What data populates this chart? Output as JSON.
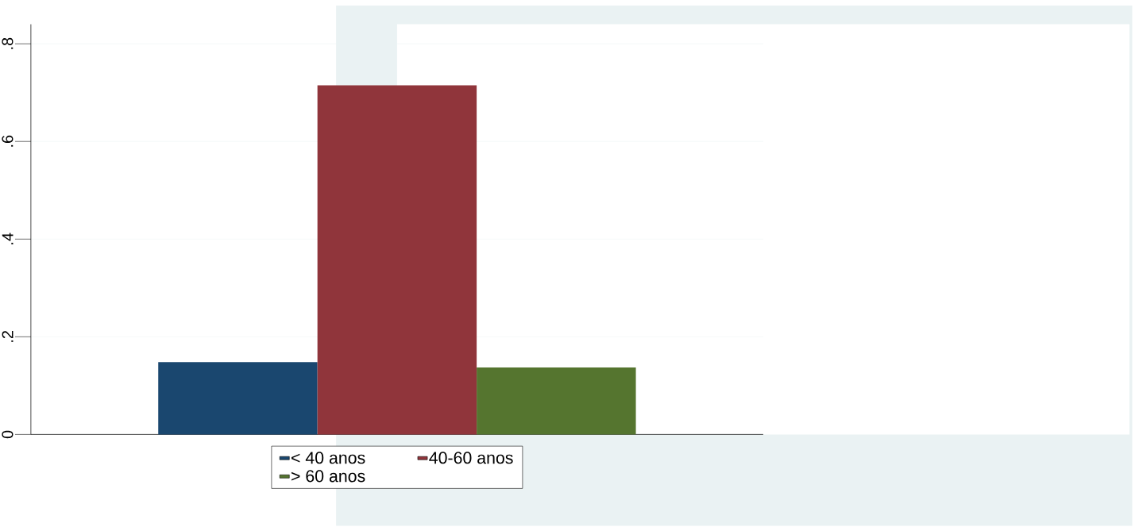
{
  "chart_data": {
    "type": "bar",
    "categories": [
      null
    ],
    "series": [
      {
        "name": "< 40 anos",
        "color": "#1a476f",
        "values": [
          0.148
        ]
      },
      {
        "name": "40-60 anos",
        "color": "#90353b",
        "values": [
          0.715
        ]
      },
      {
        "name": "> 60 anos",
        "color": "#55752f",
        "values": [
          0.137
        ]
      }
    ],
    "ylim": [
      0,
      0.84
    ],
    "yticks": [
      0,
      {
        "value": 0.2,
        "label": ".2"
      },
      {
        "value": 0.4,
        "label": ".4"
      },
      {
        "value": 0.6,
        "label": ".6"
      },
      {
        "value": 0.8,
        "label": ".8"
      }
    ],
    "grid": "y",
    "legend": "bottom"
  }
}
